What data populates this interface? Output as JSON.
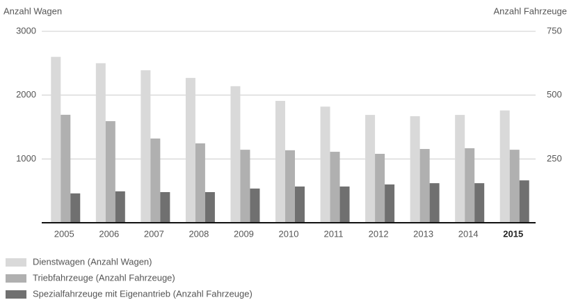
{
  "chart_data": {
    "type": "bar",
    "ylabel": "Anzahl Wagen",
    "y2label": "Anzahl Fahrzeuge",
    "categories": [
      "2005",
      "2006",
      "2007",
      "2008",
      "2009",
      "2010",
      "2011",
      "2012",
      "2013",
      "2014",
      "2015"
    ],
    "bold_category_index": 10,
    "series": [
      {
        "name": "Dienstwagen (Anzahl Wagen)",
        "color": "#d9d9d9",
        "axis": "y",
        "values": [
          2600,
          2500,
          2390,
          2270,
          2140,
          1910,
          1820,
          1690,
          1670,
          1690,
          1760
        ]
      },
      {
        "name": "Triebfahrzeuge (Anzahl Fahrzeuge)",
        "color": "#b0b0b0",
        "axis": "y2",
        "values": [
          423,
          398,
          330,
          311,
          286,
          284,
          278,
          270,
          289,
          292,
          286
        ]
      },
      {
        "name": "Spezialfahrzeuge mit Eigenantrieb (Anzahl Fahrzeuge)",
        "color": "#707070",
        "axis": "y2",
        "values": [
          115,
          123,
          120,
          120,
          134,
          142,
          142,
          150,
          155,
          155,
          166
        ]
      }
    ],
    "ylim": [
      0,
      3000
    ],
    "yticks": [
      1000,
      2000,
      3000
    ],
    "y2lim": [
      0,
      750
    ],
    "y2ticks": [
      250,
      500,
      750
    ],
    "grid": true
  }
}
